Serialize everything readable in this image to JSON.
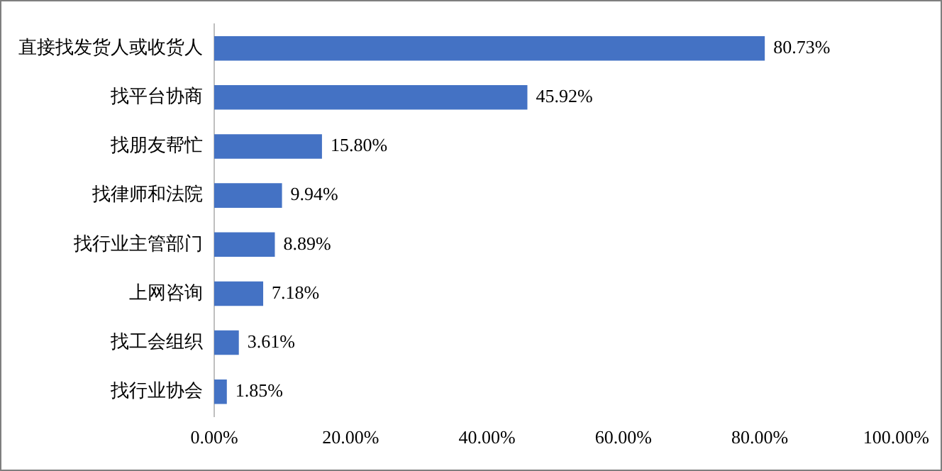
{
  "chart_data": {
    "type": "bar",
    "orientation": "horizontal",
    "categories": [
      "直接找发货人或收货人",
      "找平台协商",
      "找朋友帮忙",
      "找律师和法院",
      "找行业主管部门",
      "上网咨询",
      "找工会组织",
      "找行业协会"
    ],
    "values": [
      80.73,
      45.92,
      15.8,
      9.94,
      8.89,
      7.18,
      3.61,
      1.85
    ],
    "value_labels": [
      "80.73%",
      "45.92%",
      "15.80%",
      "9.94%",
      "8.89%",
      "7.18%",
      "3.61%",
      "1.85%"
    ],
    "color": "#4472c4",
    "xlim": [
      0,
      100
    ],
    "xticks": [
      {
        "value": 0,
        "label": "0.00%"
      },
      {
        "value": 20,
        "label": "20.00%"
      },
      {
        "value": 40,
        "label": "40.00%"
      },
      {
        "value": 60,
        "label": "60.00%"
      },
      {
        "value": 80,
        "label": "80.00%"
      },
      {
        "value": 100,
        "label": "100.00%"
      }
    ],
    "grid": false,
    "legend": false
  }
}
